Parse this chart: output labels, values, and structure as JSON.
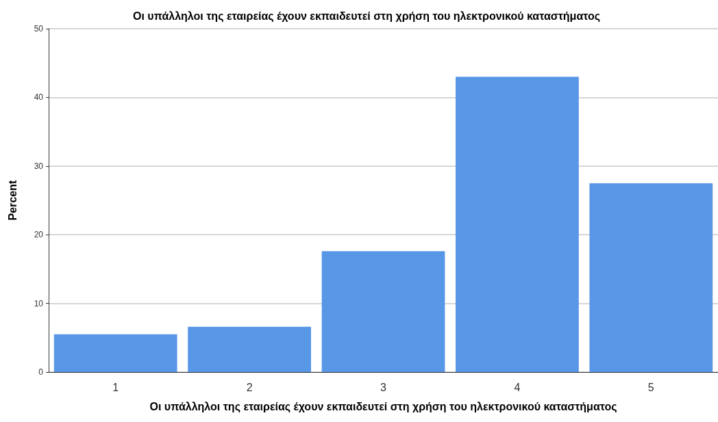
{
  "chart_data": {
    "type": "bar",
    "title": "Οι υπάλληλοι της εταιρείας έχουν εκπαιδευτεί στη χρήση του ηλεκτρονικού καταστήματος",
    "xlabel": "Οι υπάλληλοι της εταιρείας έχουν εκπαιδευτεί στη χρήση του ηλεκτρονικού καταστήματος",
    "ylabel": "Percent",
    "categories": [
      "1",
      "2",
      "3",
      "4",
      "5"
    ],
    "values": [
      5.5,
      6.6,
      17.6,
      43.0,
      27.5
    ],
    "color": "#5896e6",
    "ylim": [
      0,
      50
    ],
    "yticks": [
      0,
      10,
      20,
      30,
      40,
      50
    ],
    "grid": "y"
  }
}
